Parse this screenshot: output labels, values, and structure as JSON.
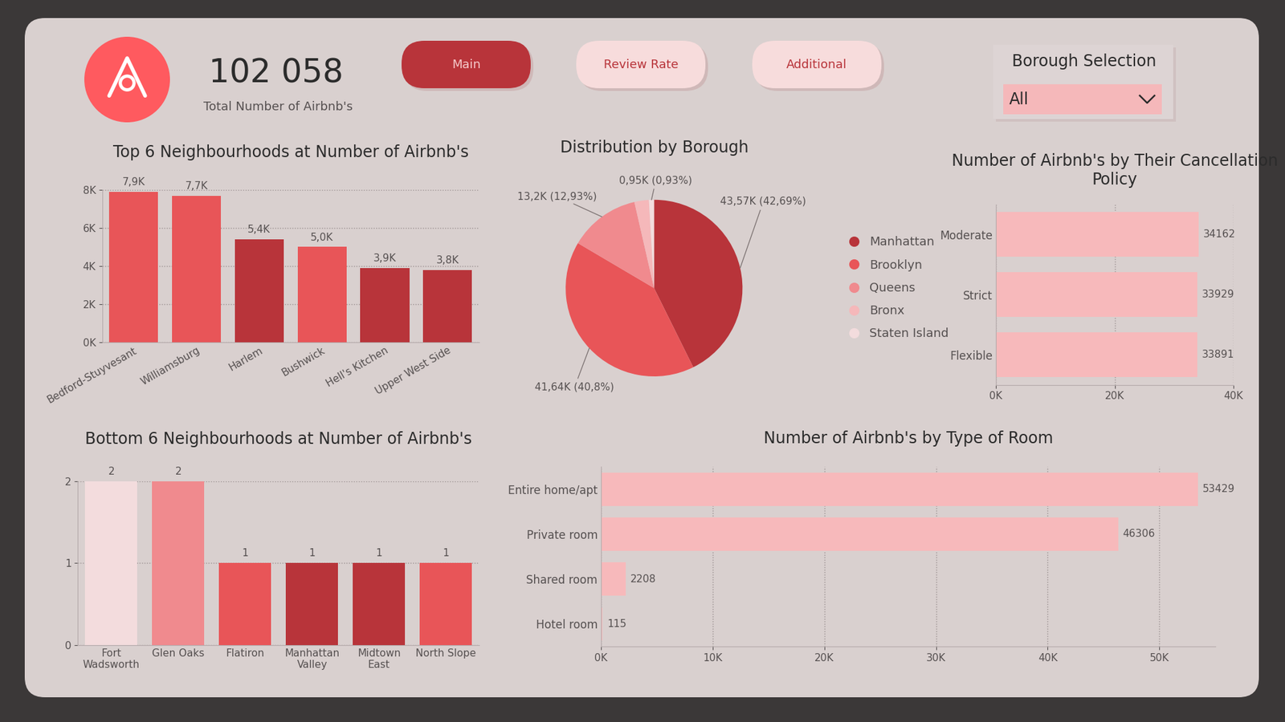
{
  "header": {
    "total": "102 058",
    "total_label": "Total Number of Airbnb's",
    "buttons": [
      "Main",
      "Review Rate",
      "Additional"
    ],
    "filter_title": "Borough Selection",
    "filter_value": "All"
  },
  "chart_data": [
    {
      "type": "bar",
      "title": "Top 6 Neighbourhoods at Number of Airbnb's",
      "categories": [
        "Bedford-Stuyvesant",
        "Williamsburg",
        "Harlem",
        "Bushwick",
        "Hell's Kitchen",
        "Upper West Side"
      ],
      "values": [
        7900,
        7700,
        5400,
        5000,
        3900,
        3800
      ],
      "value_labels": [
        "7,9K",
        "7,7K",
        "5,4K",
        "5,0K",
        "3,9K",
        "3,8K"
      ],
      "colors": [
        "#e85558",
        "#e85558",
        "#b8343a",
        "#e85558",
        "#b8343a",
        "#b8343a"
      ],
      "ylim": [
        0,
        8000
      ],
      "yticks": [
        {
          "value": 0,
          "label": "0K"
        },
        {
          "value": 2000,
          "label": "2K"
        },
        {
          "value": 4000,
          "label": "4K"
        },
        {
          "value": 6000,
          "label": "6K"
        },
        {
          "value": 8000,
          "label": "8K"
        }
      ],
      "grid": true,
      "data_labels": true
    },
    {
      "type": "pie",
      "title": "Distribution by Borough",
      "categories": [
        "Manhattan",
        "Brooklyn",
        "Queens",
        "Bronx",
        "Staten Island"
      ],
      "values": [
        43.57,
        41.64,
        13.2,
        2.7,
        0.95
      ],
      "value_labels": [
        "43,57K (42,69%)",
        "41,64K (40,8%)",
        "13,2K (12,93%)",
        null,
        "0,95K (0,93%)"
      ],
      "colors": [
        "#b8343a",
        "#e85558",
        "#f08a8e",
        "#f5b8ba",
        "#f3dcdd"
      ],
      "legend": "right",
      "data_labels": true
    },
    {
      "type": "bar",
      "title": "Number of Airbnb's by Their Cancellation Policy",
      "orientation": "horizontal",
      "categories": [
        "Moderate",
        "Strict",
        "Flexible"
      ],
      "values": [
        34162,
        33929,
        33891
      ],
      "color": "#f7b9bb",
      "xlim": [
        0,
        40000
      ],
      "xticks": [
        {
          "value": 0,
          "label": "0K"
        },
        {
          "value": 20000,
          "label": "20K"
        },
        {
          "value": 40000,
          "label": "40K"
        }
      ],
      "grid": true,
      "data_labels": true
    },
    {
      "type": "bar",
      "title": "Bottom 6 Neighbourhoods at Number of Airbnb's",
      "categories": [
        "Fort Wadsworth",
        "Glen Oaks",
        "Flatiron",
        "Manhattan Valley",
        "Midtown East",
        "North Slope"
      ],
      "values": [
        2,
        2,
        1,
        1,
        1,
        1
      ],
      "colors": [
        "#f3dcdd",
        "#f08a8e",
        "#e85558",
        "#b8343a",
        "#b8343a",
        "#e85558"
      ],
      "ylim": [
        0,
        2
      ],
      "yticks": [
        0,
        1,
        2
      ],
      "grid": true,
      "data_labels": true
    },
    {
      "type": "bar",
      "title": "Number of Airbnb's by Type of Room",
      "orientation": "horizontal",
      "categories": [
        "Entire home/apt",
        "Private room",
        "Shared room",
        "Hotel room"
      ],
      "values": [
        53429,
        46306,
        2208,
        115
      ],
      "color": "#f7b9bb",
      "xlim": [
        0,
        55000
      ],
      "xticks": [
        {
          "value": 0,
          "label": "0K"
        },
        {
          "value": 10000,
          "label": "10K"
        },
        {
          "value": 20000,
          "label": "20K"
        },
        {
          "value": 30000,
          "label": "30K"
        },
        {
          "value": 40000,
          "label": "40K"
        },
        {
          "value": 50000,
          "label": "50K"
        }
      ],
      "grid": true,
      "data_labels": true
    }
  ]
}
